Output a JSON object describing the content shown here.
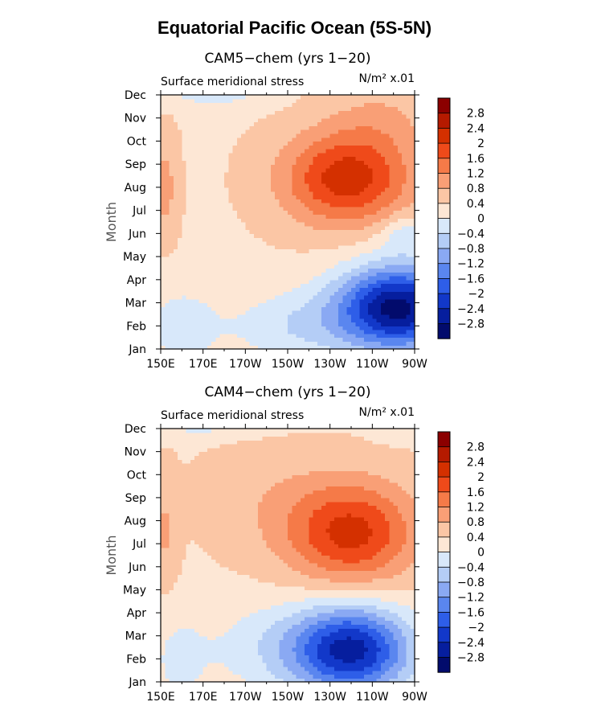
{
  "figure": {
    "title": "Equatorial Pacific Ocean (5S-5N)"
  },
  "chart_data": [
    {
      "type": "heatmap",
      "title": "CAM5−chem (yrs 1−20)",
      "left_label": "Surface meridional stress",
      "unit_label": "N/m² x.01",
      "ylabel": "Month",
      "xlabel": "",
      "x_ticks": [
        "150E",
        "170E",
        "170W",
        "150W",
        "130W",
        "110W",
        "90W"
      ],
      "y_ticks": [
        "Jan",
        "Feb",
        "Mar",
        "Apr",
        "May",
        "Jun",
        "Jul",
        "Aug",
        "Sep",
        "Oct",
        "Nov",
        "Dec"
      ],
      "xlim": [
        150,
        270
      ],
      "colorbar_levels": [
        "2.8",
        "2.4",
        "2",
        "1.6",
        "1.2",
        "0.8",
        "0.4",
        "0",
        "−0.4",
        "−0.8",
        "−1.2",
        "−1.6",
        "−2",
        "−2.4",
        "−2.8"
      ],
      "colorbar_colors": [
        "#8b0000",
        "#b51a00",
        "#d43000",
        "#ef4a1a",
        "#f57a48",
        "#f99f76",
        "#fbc6a5",
        "#fde7d5",
        "#d8e8fa",
        "#b4cdf6",
        "#8aa9f3",
        "#5a86ef",
        "#2e5ee8",
        "#1238c9",
        "#061e9e",
        "#020b6c"
      ],
      "extrema": {
        "max": 2.1,
        "min": -2.9
      },
      "notes": "Zonal-monthly field: positive (southward->northward) stress Jun-Nov peaking near 125W in Aug; negative Jan-May peaking near 95W in Mar."
    },
    {
      "type": "heatmap",
      "title": "CAM4−chem (yrs 1−20)",
      "left_label": "Surface meridional stress",
      "unit_label": "N/m² x.01",
      "ylabel": "Month",
      "xlabel": "",
      "x_ticks": [
        "150E",
        "170E",
        "170W",
        "150W",
        "130W",
        "110W",
        "90W"
      ],
      "y_ticks": [
        "Jan",
        "Feb",
        "Mar",
        "Apr",
        "May",
        "Jun",
        "Jul",
        "Aug",
        "Sep",
        "Oct",
        "Nov",
        "Dec"
      ],
      "xlim": [
        150,
        270
      ],
      "colorbar_levels": [
        "2.8",
        "2.4",
        "2",
        "1.6",
        "1.2",
        "0.8",
        "0.4",
        "0",
        "−0.4",
        "−0.8",
        "−1.2",
        "−1.6",
        "−2",
        "−2.4",
        "−2.8"
      ],
      "colorbar_colors": [
        "#8b0000",
        "#b51a00",
        "#d43000",
        "#ef4a1a",
        "#f57a48",
        "#f99f76",
        "#fbc6a5",
        "#fde7d5",
        "#d8e8fa",
        "#b4cdf6",
        "#8aa9f3",
        "#5a86ef",
        "#2e5ee8",
        "#1238c9",
        "#061e9e",
        "#020b6c"
      ],
      "extrema": {
        "max": 2.0,
        "min": -2.5
      },
      "notes": "Zonal-monthly field: positive Jun-Nov peaking near 120W in Aug; negative Jan-Apr peaking near 120W in Mar."
    }
  ]
}
